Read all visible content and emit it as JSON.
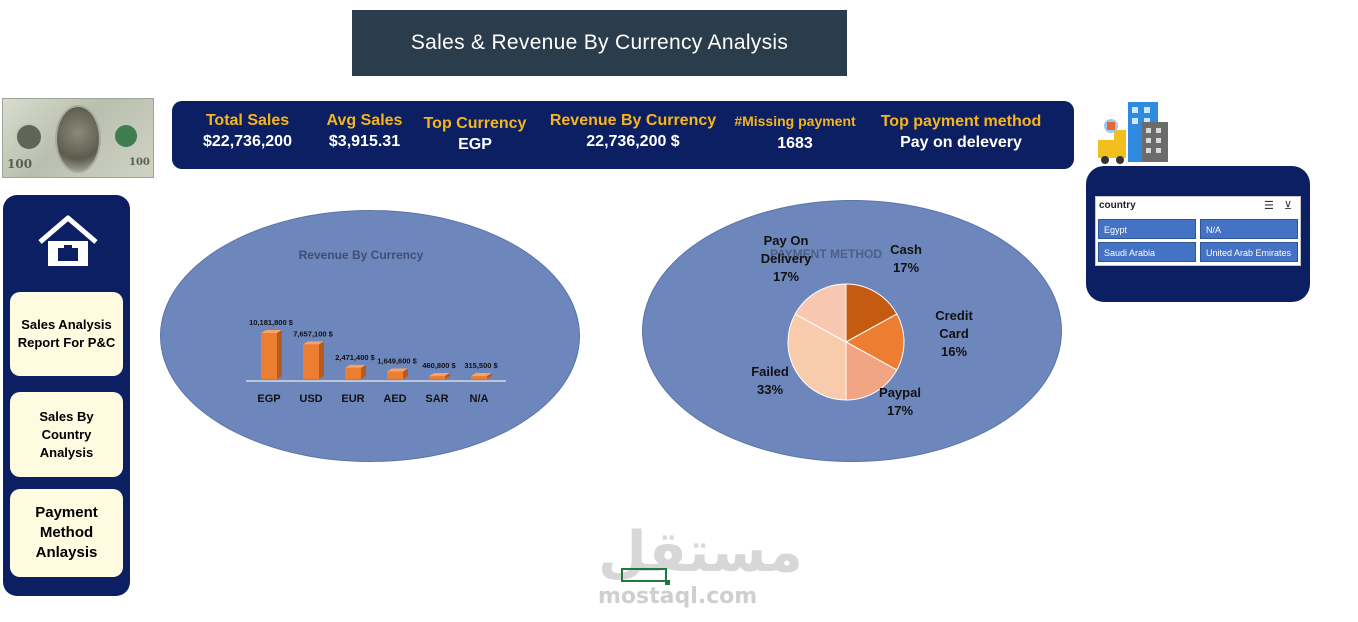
{
  "title": "Sales & Revenue By Currency Analysis",
  "kpis": [
    {
      "label": "Total Sales",
      "value": "$22,736,200"
    },
    {
      "label": "Avg Sales",
      "value": "$3,915.31"
    },
    {
      "label": "Top Currency",
      "value": "EGP"
    },
    {
      "label": "Revenue By Currency",
      "value": "22,736,200 $"
    },
    {
      "label": "#Missing payment",
      "value": "1683"
    },
    {
      "label": "Top payment method",
      "value": "Pay on delevery"
    }
  ],
  "money": {
    "left_number": "100",
    "right_number": "100"
  },
  "sidebar": {
    "items": [
      {
        "label": "Sales Analysis Report For P&C"
      },
      {
        "label": "Sales By Country Analysis"
      },
      {
        "label": "Payment Method Anlaysis"
      }
    ]
  },
  "chart_data": [
    {
      "type": "bar",
      "title": "Revenue By Currency",
      "categories": [
        "EGP",
        "USD",
        "EUR",
        "AED",
        "SAR",
        "N/A"
      ],
      "values": [
        10181800,
        7657100,
        2471400,
        1649600,
        460800,
        315500
      ],
      "data_labels": [
        "10,181,800 $",
        "7,657,100 $",
        "2,471,400 $",
        "1,649,600 $",
        "460,800 $",
        "315,500 $"
      ],
      "ylim": [
        0,
        10181800
      ],
      "colors": {
        "bar": "#ed7d31",
        "side": "#b85a1c"
      }
    },
    {
      "type": "pie",
      "title": "PAYMENT METHOD",
      "slices": [
        {
          "label": "Cash",
          "percent": "17%",
          "value": 17,
          "color": "#c55a11"
        },
        {
          "label": "Credit Card",
          "percent": "16%",
          "value": 16,
          "color": "#ed7d31"
        },
        {
          "label": "Paypal",
          "percent": "17%",
          "value": 17,
          "color": "#f2a582"
        },
        {
          "label": "Failed",
          "percent": "33%",
          "value": 33,
          "color": "#f8cbad"
        },
        {
          "label": "Pay On Delivery",
          "percent": "17%",
          "value": 17,
          "color": "#f7c7b2"
        }
      ]
    }
  ],
  "slicer": {
    "header": "country",
    "items": [
      "Egypt",
      "N/A",
      "Saudi Arabia",
      "United Arab Emirates"
    ]
  },
  "watermark": {
    "arabic": "مستقل",
    "latin": "mostaql.com"
  },
  "colors": {
    "navy": "#0b1f62",
    "gold": "#f6b51b",
    "ellipse": "#6d87bd",
    "nav_button": "#fffbe0"
  }
}
